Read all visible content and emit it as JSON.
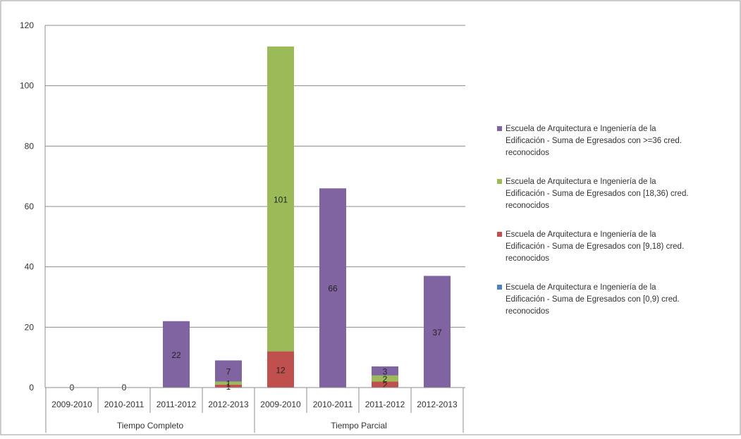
{
  "chart_data": {
    "type": "bar",
    "stacked": true,
    "ylim": [
      0,
      120
    ],
    "yticks": [
      "0",
      "20",
      "40",
      "60",
      "80",
      "100",
      "120"
    ],
    "grid": true,
    "legend_position": "right",
    "categories": [
      "2009-2010",
      "2010-2011",
      "2011-2012",
      "2012-2013",
      "2009-2010",
      "2010-2011",
      "2011-2012",
      "2012-2013"
    ],
    "groups": [
      {
        "label": "Tiempo Completo",
        "count": 4
      },
      {
        "label": "Tiempo Parcial",
        "count": 4
      }
    ],
    "series": [
      {
        "name": "Escuela de Arquitectura e Ingeniería de la Edificación - Suma de Egresados con [0,9) cred. reconocidos",
        "color": "#4f81bd",
        "values": [
          0,
          0,
          0,
          0,
          0,
          0,
          0,
          0
        ],
        "labels": [
          "",
          "",
          "",
          "",
          "",
          "",
          "",
          ""
        ]
      },
      {
        "name": "Escuela de Arquitectura e Ingeniería de la Edificación - Suma de Egresados con [9,18) cred. reconocidos",
        "color": "#c0504d",
        "values": [
          0,
          0,
          0,
          1,
          12,
          0,
          2,
          0
        ],
        "labels": [
          "",
          "",
          "",
          "1",
          "12",
          "",
          "2",
          ""
        ]
      },
      {
        "name": "Escuela de Arquitectura e Ingeniería de la Edificación - Suma de Egresados con [18,36) cred. reconocidos",
        "color": "#9bbb59",
        "values": [
          0,
          0,
          0,
          1,
          101,
          0,
          2,
          0
        ],
        "labels": [
          "",
          "",
          "",
          "1",
          "101",
          "",
          "2",
          ""
        ]
      },
      {
        "name": "Escuela de Arquitectura e Ingeniería de la Edificación - Suma de Egresados con >=36 cred. reconocidos",
        "color": "#8064a2",
        "values": [
          0,
          0,
          22,
          7,
          0,
          66,
          3,
          37
        ],
        "labels": [
          "0",
          "0",
          "22",
          "7",
          "",
          "66",
          "3",
          "37"
        ]
      }
    ],
    "legend_order": [
      3,
      2,
      1,
      0
    ],
    "legend_lines": [
      [
        "Escuela de Arquitectura e Ingeniería de la",
        "Edificación - Suma de Egresados con >=36 cred.",
        "reconocidos"
      ],
      [
        "Escuela de Arquitectura e Ingeniería de la",
        "Edificación - Suma de Egresados con [18,36) cred.",
        "reconocidos"
      ],
      [
        "Escuela de Arquitectura e Ingeniería de la",
        "Edificación - Suma de Egresados con [9,18) cred.",
        "reconocidos"
      ],
      [
        "Escuela de Arquitectura e Ingeniería de la",
        "Edificación - Suma de Egresados con [0,9) cred.",
        "reconocidos"
      ]
    ]
  }
}
